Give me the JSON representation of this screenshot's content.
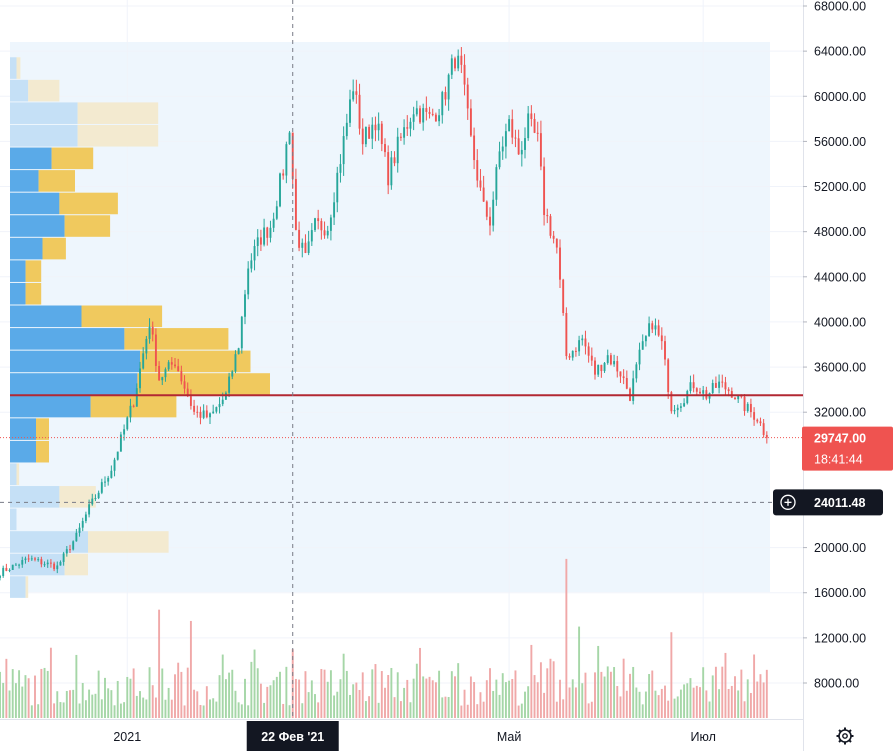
{
  "chart_data": {
    "type": "candlestick",
    "y_axis": {
      "ticks": [
        68000,
        64000,
        60000,
        56000,
        52000,
        48000,
        44000,
        40000,
        36000,
        32000,
        20000,
        16000,
        12000,
        8000
      ],
      "tick_labels": [
        "68000.00",
        "64000.00",
        "60000.00",
        "56000.00",
        "52000.00",
        "48000.00",
        "44000.00",
        "40000.00",
        "36000.00",
        "32000.00",
        "20000.00",
        "16000.00",
        "12000.00",
        "8000.00"
      ],
      "range": [
        3200,
        68400
      ]
    },
    "x_axis": {
      "labels": [
        {
          "text": "2021",
          "date": "2021-01-01"
        },
        {
          "text": "Май",
          "date": "2021-05-01"
        },
        {
          "text": "Июл",
          "date": "2021-07-01"
        }
      ],
      "highlighted_label": {
        "text": "22 Фев '21",
        "date": "2021-02-22"
      },
      "range": [
        "2020-11-22",
        "2021-07-22"
      ]
    },
    "close_path": [
      [
        "2020-11-22",
        17800
      ],
      [
        "2020-12-01",
        19000
      ],
      [
        "2020-12-10",
        18300
      ],
      [
        "2020-12-16",
        21000
      ],
      [
        "2020-12-20",
        23500
      ],
      [
        "2020-12-27",
        27000
      ],
      [
        "2021-01-03",
        33000
      ],
      [
        "2021-01-08",
        40000
      ],
      [
        "2021-01-11",
        35000
      ],
      [
        "2021-01-16",
        36500
      ],
      [
        "2021-01-22",
        32000
      ],
      [
        "2021-01-27",
        31500
      ],
      [
        "2021-02-01",
        33500
      ],
      [
        "2021-02-05",
        38000
      ],
      [
        "2021-02-08",
        45000
      ],
      [
        "2021-02-12",
        47500
      ],
      [
        "2021-02-15",
        48500
      ],
      [
        "2021-02-19",
        53500
      ],
      [
        "2021-02-21",
        57500
      ],
      [
        "2021-02-23",
        48000
      ],
      [
        "2021-02-26",
        45500
      ],
      [
        "2021-03-01",
        48500
      ],
      [
        "2021-03-05",
        48500
      ],
      [
        "2021-03-10",
        56000
      ],
      [
        "2021-03-13",
        61000
      ],
      [
        "2021-03-16",
        56000
      ],
      [
        "2021-03-20",
        58000
      ],
      [
        "2021-03-24",
        53000
      ],
      [
        "2021-03-27",
        55500
      ],
      [
        "2021-04-01",
        59000
      ],
      [
        "2021-04-06",
        58000
      ],
      [
        "2021-04-10",
        59500
      ],
      [
        "2021-04-14",
        63500
      ],
      [
        "2021-04-16",
        62000
      ],
      [
        "2021-04-19",
        56000
      ],
      [
        "2021-04-23",
        50000
      ],
      [
        "2021-04-25",
        49000
      ],
      [
        "2021-04-28",
        55000
      ],
      [
        "2021-05-01",
        57500
      ],
      [
        "2021-05-04",
        55000
      ],
      [
        "2021-05-07",
        57500
      ],
      [
        "2021-05-10",
        56000
      ],
      [
        "2021-05-12",
        50000
      ],
      [
        "2021-05-16",
        46500
      ],
      [
        "2021-05-19",
        37000
      ],
      [
        "2021-05-21",
        37500
      ],
      [
        "2021-05-24",
        38500
      ],
      [
        "2021-05-28",
        35500
      ],
      [
        "2021-06-01",
        37000
      ],
      [
        "2021-06-05",
        35500
      ],
      [
        "2021-06-08",
        33500
      ],
      [
        "2021-06-11",
        37000
      ],
      [
        "2021-06-15",
        40000
      ],
      [
        "2021-06-18",
        38000
      ],
      [
        "2021-06-21",
        32500
      ],
      [
        "2021-06-24",
        33000
      ],
      [
        "2021-06-28",
        34500
      ],
      [
        "2021-07-02",
        33500
      ],
      [
        "2021-07-06",
        34500
      ],
      [
        "2021-07-10",
        33800
      ],
      [
        "2021-07-14",
        32500
      ],
      [
        "2021-07-18",
        31500
      ],
      [
        "2021-07-21",
        29747
      ]
    ],
    "volume": {
      "scale": "bottom-pane",
      "spikes": [
        [
          "2021-01-11",
          16500
        ],
        [
          "2021-01-21",
          15500
        ],
        [
          "2021-02-22",
          13000
        ],
        [
          "2021-05-19",
          21000
        ],
        [
          "2021-05-23",
          15000
        ],
        [
          "2021-06-21",
          14500
        ]
      ]
    },
    "volume_profile": {
      "value_area_color": "#5aaae8",
      "value_area_up_color": "#f0c95e",
      "outside_color": "#c5e0f6",
      "outside_up_color": "#f3ead0",
      "rows": [
        {
          "price": 62500,
          "down": 5,
          "up": 3,
          "inside": false
        },
        {
          "price": 60500,
          "down": 14,
          "up": 24,
          "inside": false
        },
        {
          "price": 58500,
          "down": 52,
          "up": 62,
          "inside": false
        },
        {
          "price": 56500,
          "down": 52,
          "up": 62,
          "inside": false
        },
        {
          "price": 54500,
          "down": 32,
          "up": 32,
          "inside": true
        },
        {
          "price": 52500,
          "down": 22,
          "up": 28,
          "inside": true
        },
        {
          "price": 50500,
          "down": 38,
          "up": 45,
          "inside": true
        },
        {
          "price": 48500,
          "down": 42,
          "up": 35,
          "inside": true
        },
        {
          "price": 46500,
          "down": 25,
          "up": 18,
          "inside": true
        },
        {
          "price": 44500,
          "down": 12,
          "up": 12,
          "inside": true
        },
        {
          "price": 42500,
          "down": 12,
          "up": 12,
          "inside": true
        },
        {
          "price": 40500,
          "down": 55,
          "up": 62,
          "inside": true
        },
        {
          "price": 38500,
          "down": 88,
          "up": 80,
          "inside": true
        },
        {
          "price": 36500,
          "down": 100,
          "up": 85,
          "inside": true
        },
        {
          "price": 34500,
          "down": 98,
          "up": 102,
          "inside": true
        },
        {
          "price": 32500,
          "down": 62,
          "up": 66,
          "inside": true
        },
        {
          "price": 30500,
          "down": 20,
          "up": 10,
          "inside": true
        },
        {
          "price": 28500,
          "down": 20,
          "up": 10,
          "inside": true
        },
        {
          "price": 26500,
          "down": 5,
          "up": 2,
          "inside": false
        },
        {
          "price": 24500,
          "down": 38,
          "up": 28,
          "inside": false
        },
        {
          "price": 22500,
          "down": 5,
          "up": 0,
          "inside": false
        },
        {
          "price": 20500,
          "down": 60,
          "up": 62,
          "inside": false
        },
        {
          "price": 18500,
          "down": 42,
          "up": 18,
          "inside": false
        },
        {
          "price": 16500,
          "down": 12,
          "up": 2,
          "inside": false
        }
      ]
    },
    "poc_price": 33500,
    "poc_color": "#b22833",
    "last_price": {
      "label": "29747.00",
      "value": 29747,
      "countdown": "18:41:44",
      "color": "#ef5350"
    },
    "crosshair": {
      "label": "24011.48",
      "value": 24011.48,
      "date": "2021-02-22"
    },
    "colors": {
      "up": "#26a69a",
      "down": "#ef5350",
      "volume_up": "#a5d6a7",
      "volume_down": "#f0a8a8",
      "grid": "#f0f3fa",
      "axis_text": "#131722"
    }
  },
  "icons": {
    "settings": "gear-icon",
    "add": "plus-circle-icon"
  }
}
